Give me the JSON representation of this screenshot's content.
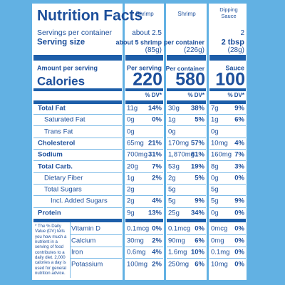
{
  "header": {
    "title": "Nutrition Facts",
    "servings_label": "Servings per container",
    "serving_size_label": "Serving size",
    "amount_label": "Amount per serving",
    "calories_label": "Calories"
  },
  "columns": [
    {
      "name": "Shrimp",
      "servings": "about 2.5",
      "serving_size": "about 5 shrimp",
      "weight": "(85g)",
      "amount_heading": "Per serving",
      "calories": "220",
      "dv_heading": "% DV*"
    },
    {
      "name": "Shrimp",
      "serving_size": "per container",
      "weight": "(226g)",
      "amount_heading": "Per container",
      "calories": "580",
      "dv_heading": "% DV*"
    },
    {
      "name": "Dipping Sauce",
      "servings": "2",
      "serving_size": "2 tbsp",
      "weight": "(28g)",
      "amount_heading": "Sauce",
      "calories": "100",
      "dv_heading": "% DV*"
    }
  ],
  "nutrients": [
    {
      "label": "Total Fat",
      "bold": true,
      "indent": 0,
      "values": [
        [
          "11g",
          "14%"
        ],
        [
          "30g",
          "38%"
        ],
        [
          "7g",
          "9%"
        ]
      ]
    },
    {
      "label": "Saturated Fat",
      "bold": false,
      "indent": 1,
      "values": [
        [
          "0g",
          "0%"
        ],
        [
          "1g",
          "5%"
        ],
        [
          "1g",
          "6%"
        ]
      ]
    },
    {
      "label": "Trans Fat",
      "bold": false,
      "indent": 1,
      "values": [
        [
          "0g"
        ],
        [
          "0g"
        ],
        [
          "0g"
        ]
      ]
    },
    {
      "label": "Cholesterol",
      "bold": true,
      "indent": 0,
      "values": [
        [
          "65mg",
          "21%"
        ],
        [
          "170mg",
          "57%"
        ],
        [
          "10mg",
          "4%"
        ]
      ]
    },
    {
      "label": "Sodium",
      "bold": true,
      "indent": 0,
      "values": [
        [
          "700mg",
          "31%"
        ],
        [
          "1,870mg",
          "81%"
        ],
        [
          "160mg",
          "7%"
        ]
      ]
    },
    {
      "label": "Total Carb.",
      "bold": true,
      "indent": 0,
      "values": [
        [
          "20g",
          "7%"
        ],
        [
          "53g",
          "19%"
        ],
        [
          "8g",
          "3%"
        ]
      ]
    },
    {
      "label": "Dietary Fiber",
      "bold": false,
      "indent": 1,
      "values": [
        [
          "1g",
          "2%"
        ],
        [
          "2g",
          "5%"
        ],
        [
          "0g",
          "0%"
        ]
      ]
    },
    {
      "label": "Total Sugars",
      "bold": false,
      "indent": 1,
      "values": [
        [
          "2g"
        ],
        [
          "5g"
        ],
        [
          "5g"
        ]
      ]
    },
    {
      "label": "Incl. Added Sugars",
      "bold": false,
      "indent": 2,
      "values": [
        [
          "2g",
          "4%"
        ],
        [
          "5g",
          "9%"
        ],
        [
          "5g",
          "9%"
        ]
      ]
    },
    {
      "label": "Protein",
      "bold": true,
      "indent": 0,
      "values": [
        [
          "9g",
          "13%"
        ],
        [
          "25g",
          "34%"
        ],
        [
          "0g",
          "0%"
        ]
      ]
    }
  ],
  "footnote": "* The % Daily Value (DV) tells you how much a nutrient in a serving of food contributes to a daily diet. 2,000 calories a day is used for general nutrition advice.",
  "vitamins": [
    {
      "label": "Vitamin D",
      "values": [
        [
          "0.1mcg",
          "0%"
        ],
        [
          "0.1mcg",
          "0%"
        ],
        [
          "0mcg",
          "0%"
        ]
      ]
    },
    {
      "label": "Calcium",
      "values": [
        [
          "30mg",
          "2%"
        ],
        [
          "90mg",
          "6%"
        ],
        [
          "0mg",
          "0%"
        ]
      ]
    },
    {
      "label": "Iron",
      "values": [
        [
          "0.6mg",
          "4%"
        ],
        [
          "1.6mg",
          "10%"
        ],
        [
          "0.1mg",
          "0%"
        ]
      ]
    },
    {
      "label": "Potassium",
      "values": [
        [
          "100mg",
          "2%"
        ],
        [
          "250mg",
          "6%"
        ],
        [
          "10mg",
          "0%"
        ]
      ]
    }
  ]
}
